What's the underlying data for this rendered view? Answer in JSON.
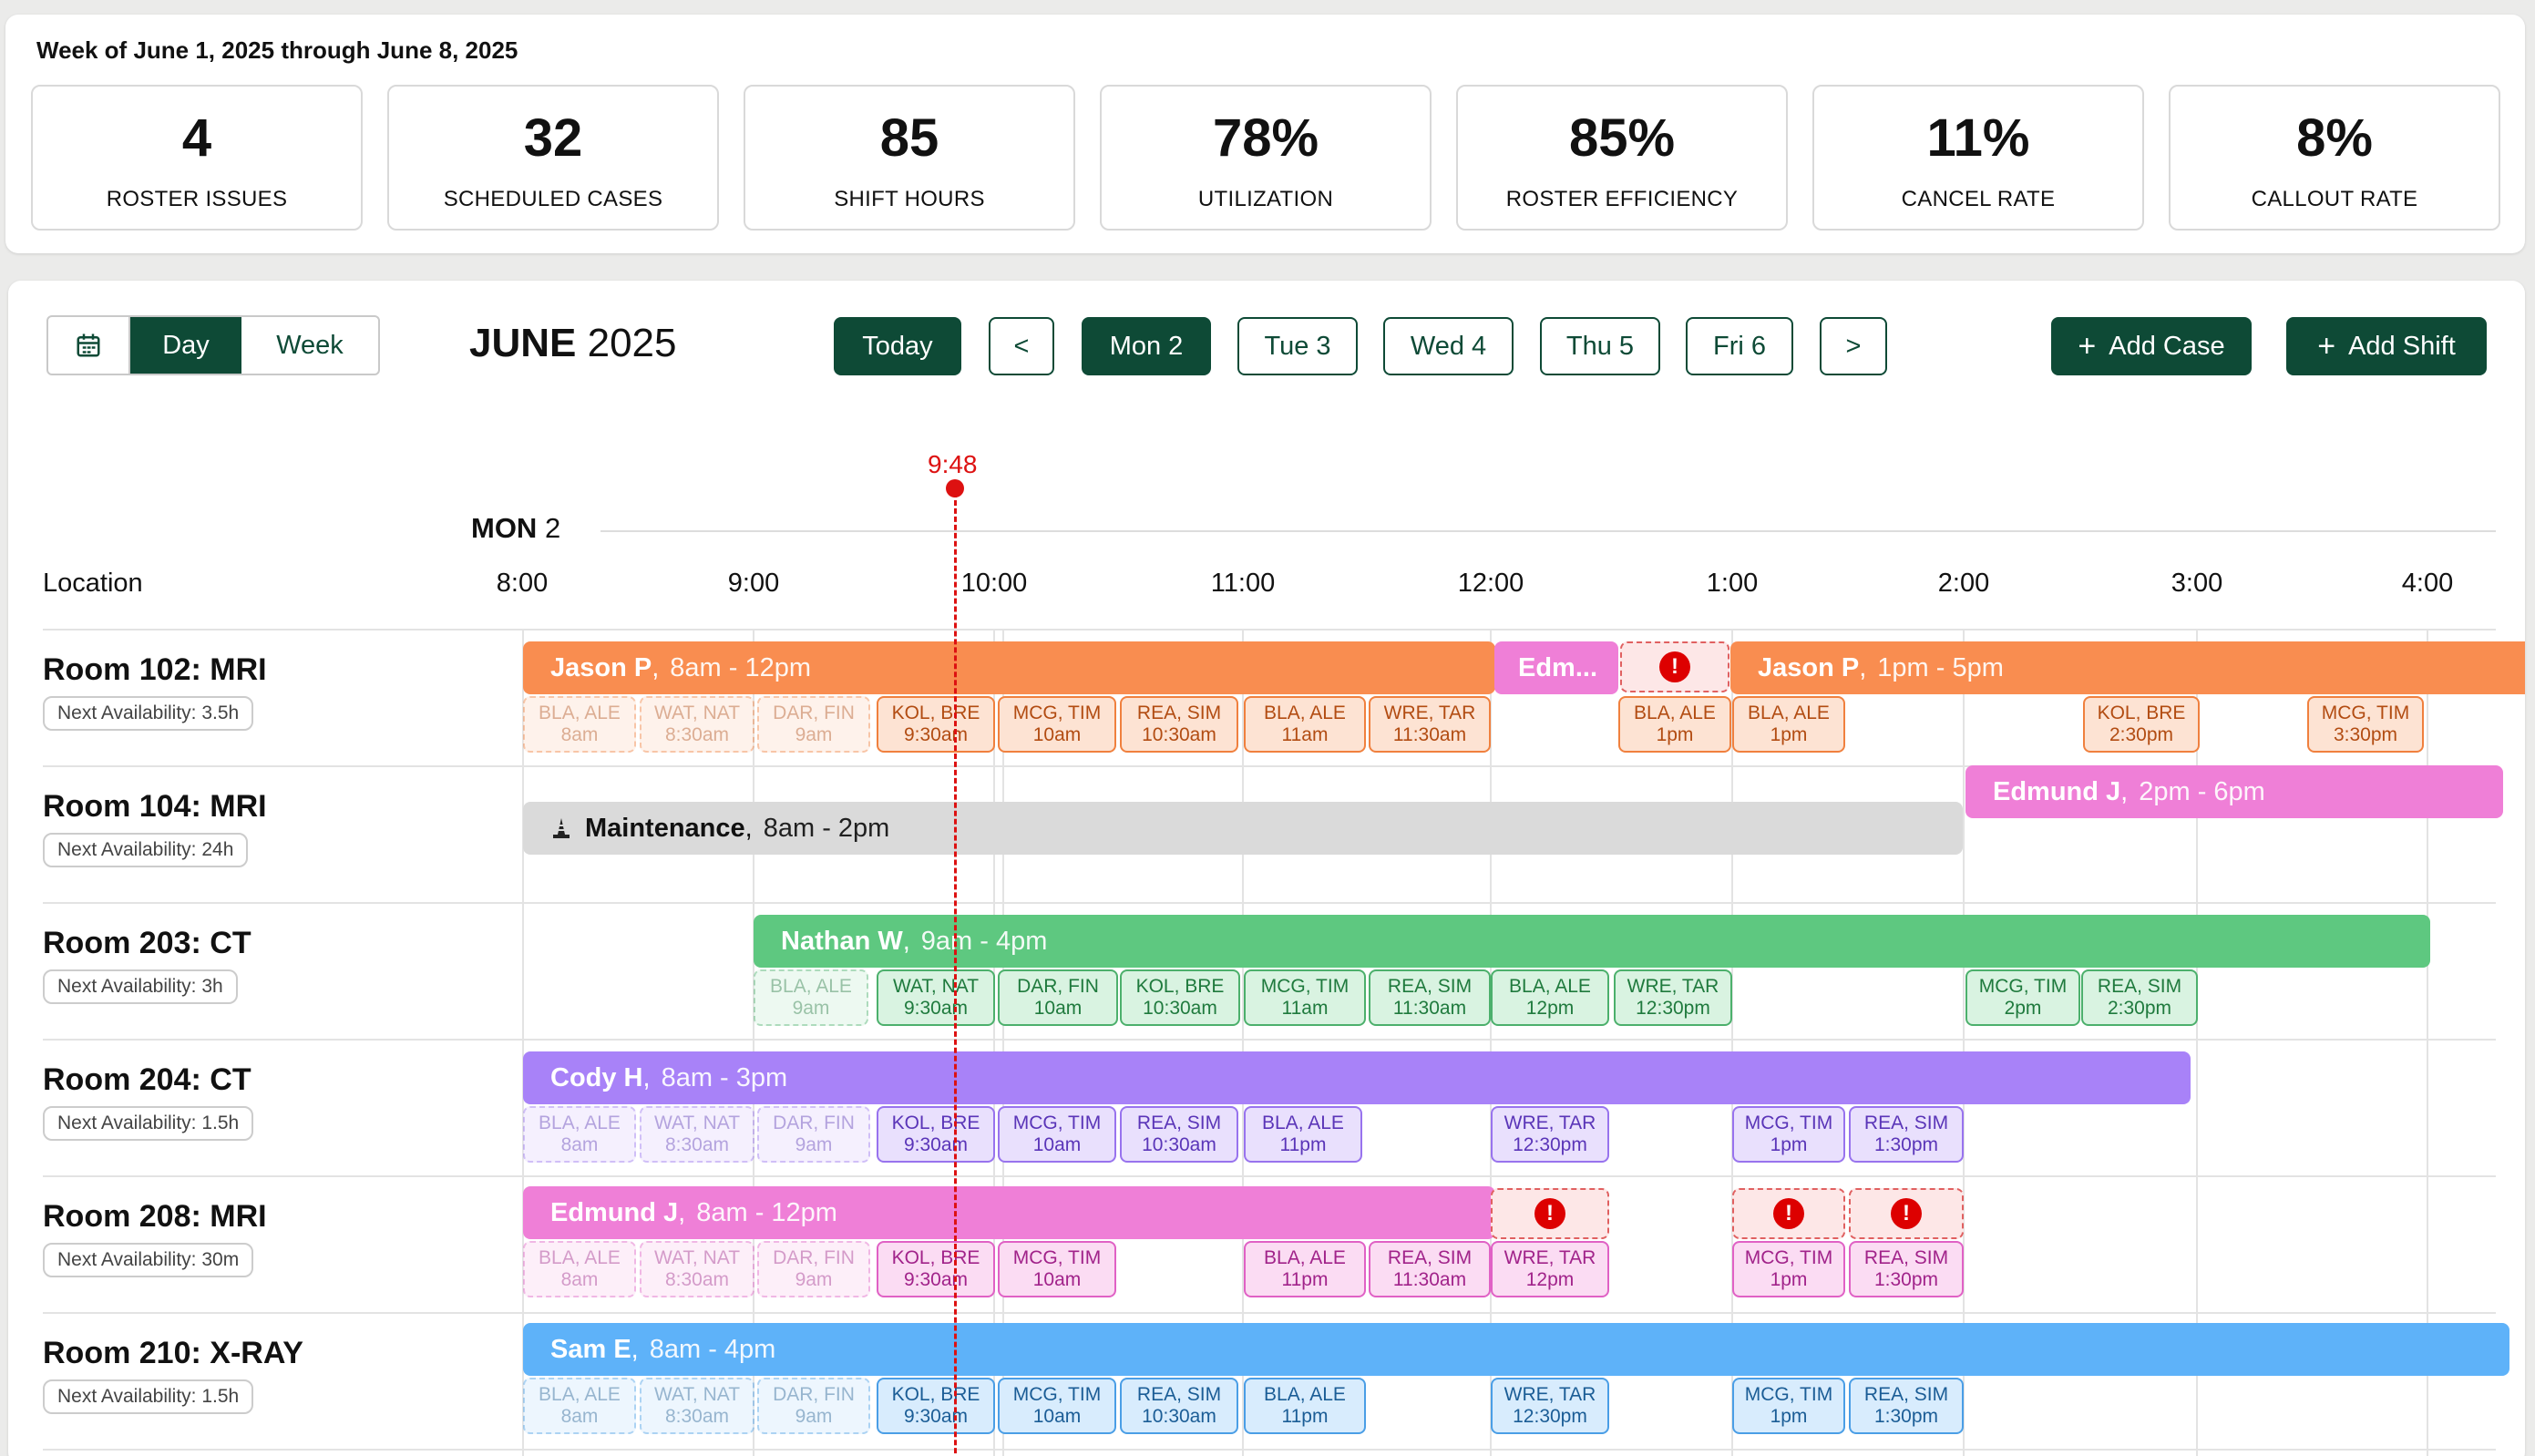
{
  "header": {
    "week_title": "Week of June 1, 2025 through June 8, 2025"
  },
  "stats": [
    {
      "value": "4",
      "label": "ROSTER ISSUES"
    },
    {
      "value": "32",
      "label": "SCHEDULED CASES"
    },
    {
      "value": "85",
      "label": "SHIFT HOURS"
    },
    {
      "value": "78%",
      "label": "UTILIZATION"
    },
    {
      "value": "85%",
      "label": "ROSTER EFFICIENCY"
    },
    {
      "value": "11%",
      "label": "CANCEL RATE"
    },
    {
      "value": "8%",
      "label": "CALLOUT RATE"
    }
  ],
  "toolbar": {
    "calendar_icon": "calendar-icon",
    "view_day": "Day",
    "view_week": "Week",
    "month": "JUNE",
    "year": "2025",
    "today": "Today",
    "prev": "<",
    "next": ">",
    "days": [
      "Mon 2",
      "Tue 3",
      "Wed 4",
      "Thu 5",
      "Fri 6"
    ],
    "selected_day": "Mon 2",
    "add_case": "Add Case",
    "add_shift": "Add Shift"
  },
  "timeline": {
    "day_name": "MON",
    "day_num": "2",
    "location_header": "Location",
    "ticks": [
      "8:00",
      "9:00",
      "10:00",
      "11:00",
      "12:00",
      "1:00",
      "2:00",
      "3:00",
      "4:00"
    ],
    "now_label": "9:48"
  },
  "colors": {
    "orange": "#f98d50",
    "pink": "#ef7fd7",
    "gray": "#dadada",
    "green": "#5ec880",
    "purple": "#a882f8",
    "blue": "#5eb2f9",
    "alert": "#d11111",
    "brand": "#0e4a36"
  },
  "rooms": [
    {
      "name": "Room 102: MRI",
      "avail": "Next Availability: 3.5h",
      "shifts": [
        {
          "name": "Jason P",
          "time": "8am - 12pm",
          "color": "orange"
        },
        {
          "name": "Edm...",
          "time": "",
          "color": "pink"
        },
        {
          "name": "Jason P",
          "time": "1pm - 5pm",
          "color": "orange"
        }
      ],
      "cases": [
        {
          "code": "BLA, ALE",
          "time": "8am"
        },
        {
          "code": "WAT, NAT",
          "time": "8:30am"
        },
        {
          "code": "DAR, FIN",
          "time": "9am"
        },
        {
          "code": "KOL, BRE",
          "time": "9:30am"
        },
        {
          "code": "MCG, TIM",
          "time": "10am"
        },
        {
          "code": "REA, SIM",
          "time": "10:30am"
        },
        {
          "code": "BLA, ALE",
          "time": "11am"
        },
        {
          "code": "WRE, TAR",
          "time": "11:30am"
        },
        {
          "code": "BLA, ALE",
          "time": "1pm"
        },
        {
          "code": "BLA, ALE",
          "time": "1pm"
        },
        {
          "code": "KOL, BRE",
          "time": "2:30pm"
        },
        {
          "code": "MCG, TIM",
          "time": "3:30pm"
        }
      ]
    },
    {
      "name": "Room 104: MRI",
      "avail": "Next Availability: 24h",
      "shifts": [
        {
          "name": "Maintenance",
          "time": "8am - 2pm",
          "color": "gray",
          "icon": "cone-icon"
        },
        {
          "name": "Edmund J",
          "time": "2pm - 6pm",
          "color": "pink"
        }
      ],
      "cases": []
    },
    {
      "name": "Room 203: CT",
      "avail": "Next Availability: 3h",
      "shifts": [
        {
          "name": "Nathan W",
          "time": "9am - 4pm",
          "color": "green"
        }
      ],
      "cases": [
        {
          "code": "BLA, ALE",
          "time": "9am"
        },
        {
          "code": "WAT, NAT",
          "time": "9:30am"
        },
        {
          "code": "DAR, FIN",
          "time": "10am"
        },
        {
          "code": "KOL, BRE",
          "time": "10:30am"
        },
        {
          "code": "MCG, TIM",
          "time": "11am"
        },
        {
          "code": "REA, SIM",
          "time": "11:30am"
        },
        {
          "code": "BLA, ALE",
          "time": "12pm"
        },
        {
          "code": "WRE, TAR",
          "time": "12:30pm"
        },
        {
          "code": "MCG, TIM",
          "time": "2pm"
        },
        {
          "code": "REA, SIM",
          "time": "2:30pm"
        }
      ]
    },
    {
      "name": "Room 204: CT",
      "avail": "Next Availability: 1.5h",
      "shifts": [
        {
          "name": "Cody H",
          "time": "8am - 3pm",
          "color": "purple"
        }
      ],
      "cases": [
        {
          "code": "BLA, ALE",
          "time": "8am"
        },
        {
          "code": "WAT, NAT",
          "time": "8:30am"
        },
        {
          "code": "DAR, FIN",
          "time": "9am"
        },
        {
          "code": "KOL, BRE",
          "time": "9:30am"
        },
        {
          "code": "MCG, TIM",
          "time": "10am"
        },
        {
          "code": "REA, SIM",
          "time": "10:30am"
        },
        {
          "code": "BLA, ALE",
          "time": "11pm"
        },
        {
          "code": "WRE, TAR",
          "time": "12:30pm"
        },
        {
          "code": "MCG, TIM",
          "time": "1pm"
        },
        {
          "code": "REA, SIM",
          "time": "1:30pm"
        }
      ]
    },
    {
      "name": "Room 208: MRI",
      "avail": "Next Availability: 30m",
      "shifts": [
        {
          "name": "Edmund J",
          "time": "8am - 12pm",
          "color": "pink"
        }
      ],
      "cases": [
        {
          "code": "BLA, ALE",
          "time": "8am"
        },
        {
          "code": "WAT, NAT",
          "time": "8:30am"
        },
        {
          "code": "DAR, FIN",
          "time": "9am"
        },
        {
          "code": "KOL, BRE",
          "time": "9:30am"
        },
        {
          "code": "MCG, TIM",
          "time": "10am"
        },
        {
          "code": "BLA, ALE",
          "time": "11pm"
        },
        {
          "code": "REA, SIM",
          "time": "11:30am"
        },
        {
          "code": "WRE, TAR",
          "time": "12pm"
        },
        {
          "code": "MCG, TIM",
          "time": "1pm"
        },
        {
          "code": "REA, SIM",
          "time": "1:30pm"
        }
      ]
    },
    {
      "name": "Room 210: X-RAY",
      "avail": "Next Availability: 1.5h",
      "shifts": [
        {
          "name": "Sam E",
          "time": "8am - 4pm",
          "color": "blue"
        }
      ],
      "cases": [
        {
          "code": "BLA, ALE",
          "time": "8am"
        },
        {
          "code": "WAT, NAT",
          "time": "8:30am"
        },
        {
          "code": "DAR, FIN",
          "time": "9am"
        },
        {
          "code": "KOL, BRE",
          "time": "9:30am"
        },
        {
          "code": "MCG, TIM",
          "time": "10am"
        },
        {
          "code": "REA, SIM",
          "time": "10:30am"
        },
        {
          "code": "BLA, ALE",
          "time": "11pm"
        },
        {
          "code": "WRE, TAR",
          "time": "12:30pm"
        },
        {
          "code": "MCG, TIM",
          "time": "1pm"
        },
        {
          "code": "REA, SIM",
          "time": "1:30pm"
        }
      ]
    }
  ]
}
